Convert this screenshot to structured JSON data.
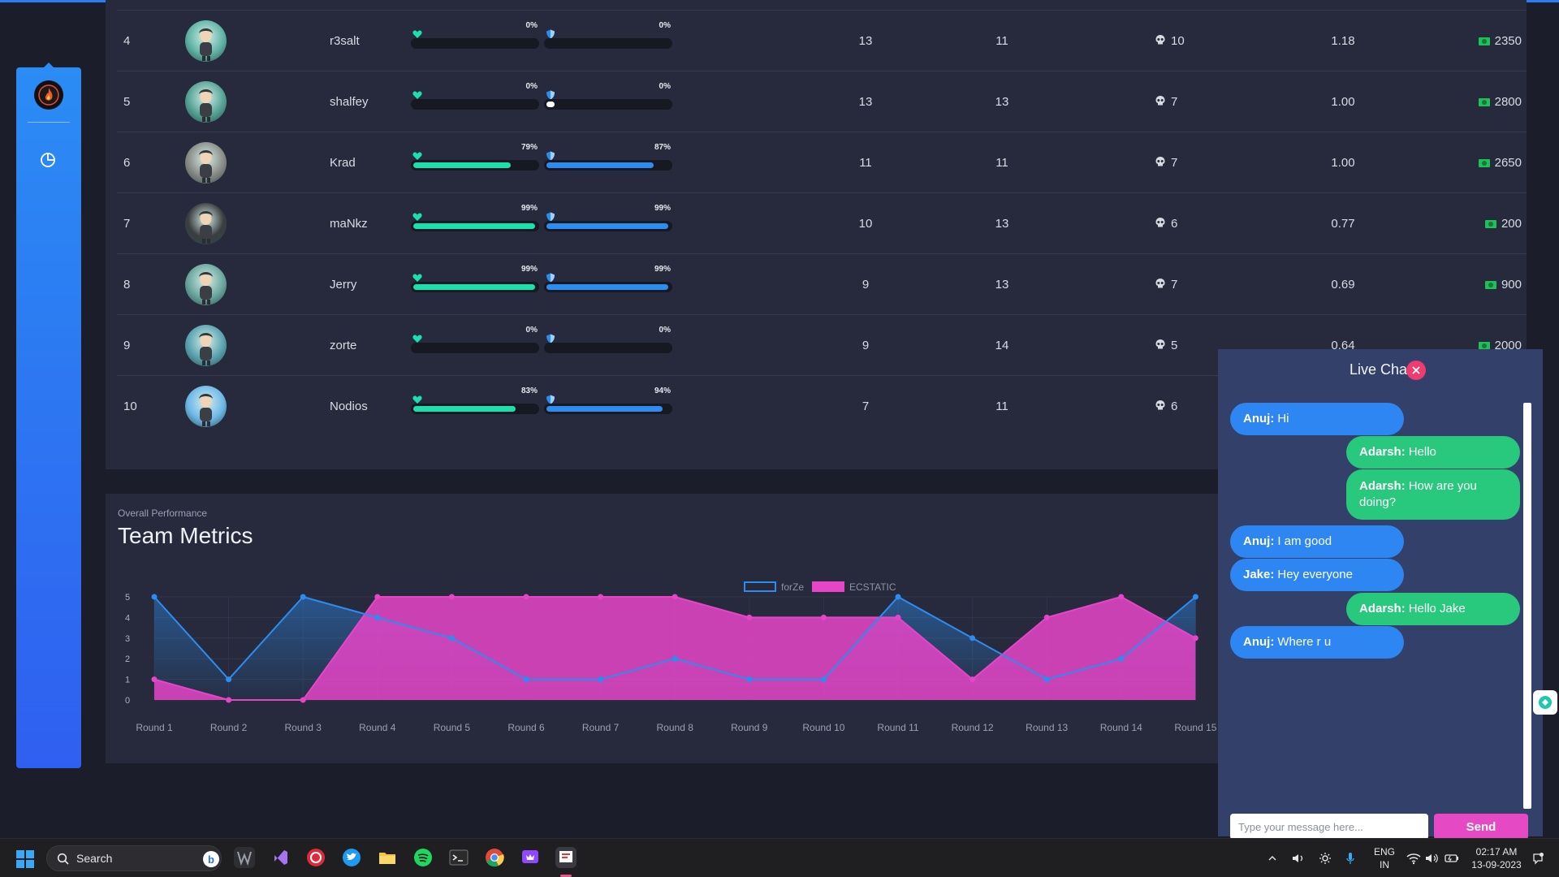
{
  "players": [
    {
      "rank": "4",
      "name": "r3salt",
      "health_pct": 0,
      "health_label": "0%",
      "armor_pct": 0,
      "armor_label": "0%",
      "kills": "13",
      "deaths": "11",
      "headshots": "10",
      "kd": "1.18",
      "money": "2350",
      "avatar_color": "#5fb3a6"
    },
    {
      "rank": "5",
      "name": "shalfey",
      "health_pct": 0,
      "health_label": "0%",
      "armor_pct": 0,
      "armor_label": "0%",
      "kills": "13",
      "deaths": "13",
      "headshots": "7",
      "kd": "1.00",
      "money": "2800",
      "avatar_color": "#55a396"
    },
    {
      "rank": "6",
      "name": "Krad",
      "health_pct": 79,
      "health_label": "79%",
      "armor_pct": 87,
      "armor_label": "87%",
      "kills": "11",
      "deaths": "11",
      "headshots": "7",
      "kd": "1.00",
      "money": "2650",
      "avatar_color": "#8a8c88"
    },
    {
      "rank": "7",
      "name": "maNkz",
      "health_pct": 99,
      "health_label": "99%",
      "armor_pct": 99,
      "armor_label": "99%",
      "kills": "10",
      "deaths": "13",
      "headshots": "6",
      "kd": "0.77",
      "money": "200",
      "avatar_color": "#3a3d40"
    },
    {
      "rank": "8",
      "name": "Jerry",
      "health_pct": 99,
      "health_label": "99%",
      "armor_pct": 99,
      "armor_label": "99%",
      "kills": "9",
      "deaths": "13",
      "headshots": "7",
      "kd": "0.69",
      "money": "900",
      "avatar_color": "#6aa69e"
    },
    {
      "rank": "9",
      "name": "zorte",
      "health_pct": 0,
      "health_label": "0%",
      "armor_pct": 0,
      "armor_label": "0%",
      "kills": "9",
      "deaths": "14",
      "headshots": "5",
      "kd": "0.64",
      "money": "2000",
      "avatar_color": "#5aa3b0"
    },
    {
      "rank": "10",
      "name": "Nodios",
      "health_pct": 83,
      "health_label": "83%",
      "armor_pct": 94,
      "armor_label": "94%",
      "kills": "7",
      "deaths": "11",
      "headshots": "6",
      "kd": "",
      "money": "",
      "avatar_color": "#6cb7e8"
    }
  ],
  "chart_section": {
    "subtitle": "Overall Performance",
    "title": "Team Metrics"
  },
  "chart_data": {
    "type": "area",
    "categories": [
      "Round 1",
      "Round 2",
      "Round 3",
      "Round 4",
      "Round 5",
      "Round 6",
      "Round 7",
      "Round 8",
      "Round 9",
      "Round 10",
      "Round 11",
      "Round 12",
      "Round 13",
      "Round 14",
      "Round 15"
    ],
    "series": [
      {
        "name": "forZe",
        "values": [
          5,
          1,
          5,
          4,
          3,
          1,
          1,
          2,
          1,
          1,
          5,
          3,
          1,
          2,
          5
        ],
        "color": "#2d8cf0"
      },
      {
        "name": "ECSTATIC",
        "values": [
          1,
          0,
          0,
          5,
          5,
          5,
          5,
          5,
          4,
          4,
          4,
          1,
          4,
          5,
          3
        ],
        "color": "#e645c8"
      }
    ],
    "y_ticks": [
      "0",
      "1",
      "2",
      "3",
      "4",
      "5"
    ],
    "ylim": [
      0,
      5
    ],
    "legend_position": "top-center",
    "grid": true
  },
  "chat": {
    "title": "Live Chat",
    "messages": [
      {
        "sender": "Anuj:",
        "text": "Hi",
        "side": "left"
      },
      {
        "sender": "Adarsh:",
        "text": "Hello",
        "side": "right"
      },
      {
        "sender": "Adarsh:",
        "text": "How are you doing?",
        "side": "right"
      },
      {
        "sender": "Anuj:",
        "text": "I am good",
        "side": "left"
      },
      {
        "sender": "Jake:",
        "text": "Hey everyone",
        "side": "left"
      },
      {
        "sender": "Adarsh:",
        "text": "Hello Jake",
        "side": "right"
      },
      {
        "sender": "Anuj:",
        "text": "Where r u",
        "side": "left"
      }
    ],
    "input_placeholder": "Type your message here...",
    "send_label": "Send"
  },
  "taskbar": {
    "search_label": "Search",
    "language_top": "ENG",
    "language_bottom": "IN",
    "time": "02:17 AM",
    "date": "13-09-2023"
  }
}
